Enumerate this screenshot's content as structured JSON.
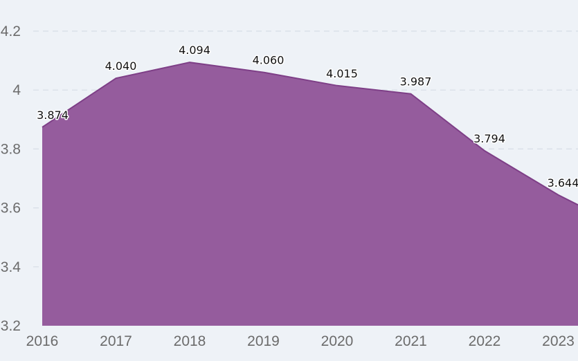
{
  "chart_data": {
    "type": "area",
    "title": "",
    "xlabel": "",
    "ylabel": "",
    "categories": [
      "2016",
      "2017",
      "2018",
      "2019",
      "2020",
      "2021",
      "2022",
      "2023"
    ],
    "series": [
      {
        "values": [
          3.874,
          4.04,
          4.094,
          4.06,
          4.015,
          3.987,
          3.794,
          3.644
        ],
        "labels": [
          "3.874",
          "4.040",
          "4.094",
          "4.060",
          "4.015",
          "3.987",
          "3.794",
          "3.644"
        ]
      }
    ],
    "extra_value_at_right_edge": 3.61,
    "ylim": [
      3.2,
      4.2
    ],
    "yticks": [
      3.2,
      3.4,
      3.6,
      3.8,
      4,
      4.2
    ],
    "ytick_labels": [
      "3.2",
      "3.4",
      "3.6",
      "3.8",
      "4",
      "4.2"
    ],
    "grid": true,
    "legend": "none"
  },
  "colors": {
    "background": "#eef2f7",
    "area_fill": "#955c9d",
    "area_stroke": "#7e3f87",
    "grid": "#d6dde6",
    "tick_text": "#6b6b6b",
    "label_text": "#111111"
  }
}
